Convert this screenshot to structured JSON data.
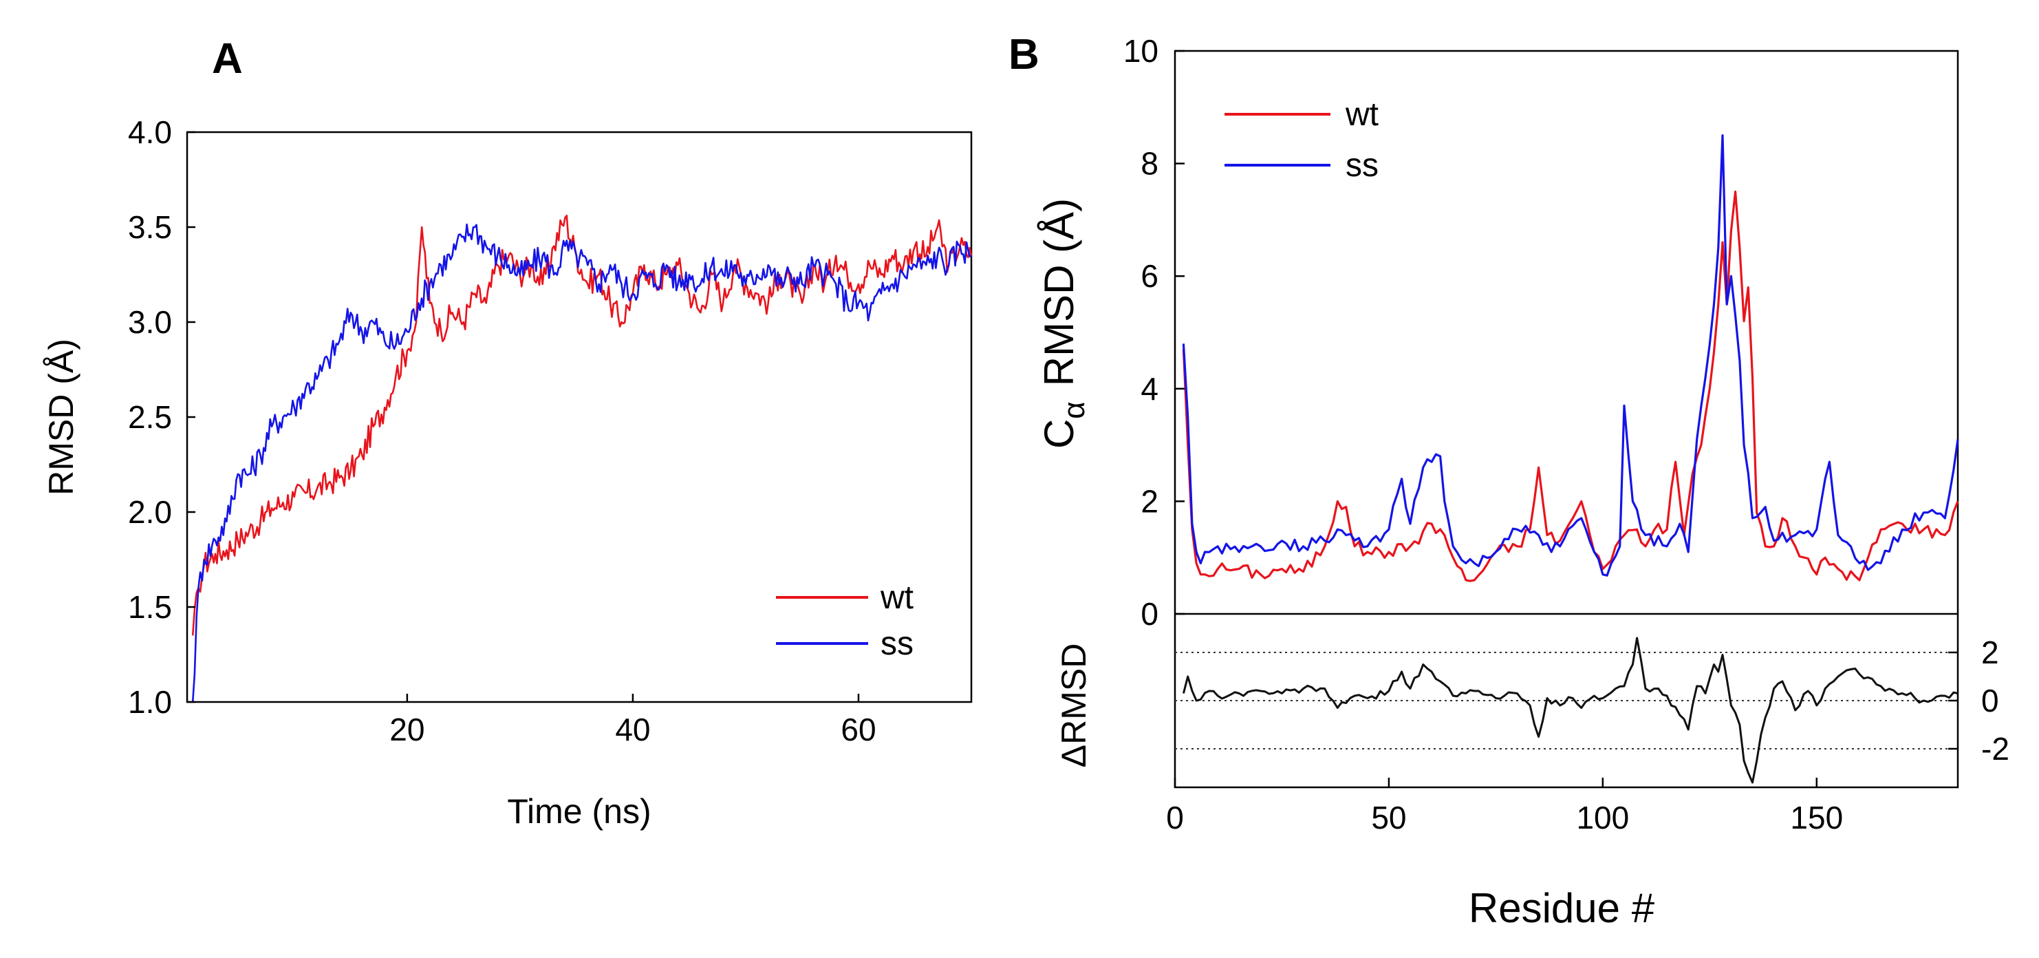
{
  "figure": {
    "panel_a_label": "A",
    "panel_b_label": "B"
  },
  "chart_data": [
    {
      "id": "A",
      "type": "line",
      "title": "",
      "xlabel": "Time (ns)",
      "ylabel": "RMSD (Å)",
      "xlim": [
        0.5,
        70
      ],
      "ylim": [
        1.0,
        4.0
      ],
      "xticks": [
        20,
        40,
        60
      ],
      "yticks": [
        1.0,
        1.5,
        2.0,
        2.5,
        3.0,
        3.5,
        4.0
      ],
      "ytick_labels": [
        "1.0",
        "1.5",
        "2.0",
        "2.5",
        "3.0",
        "3.5",
        "4.0"
      ],
      "grid": false,
      "legend_position": "bottom-right",
      "series": [
        {
          "name": "wt",
          "color": "#e8141c",
          "x": [
            1,
            1.5,
            2,
            3,
            4,
            5,
            6,
            7,
            8,
            9,
            10,
            11,
            12,
            13,
            14,
            15,
            16,
            17,
            18,
            19,
            20,
            20.8,
            21.3,
            22,
            23,
            24,
            25,
            26,
            27,
            28,
            29,
            30,
            31,
            32,
            33,
            34,
            35,
            36,
            37,
            38,
            39,
            40,
            41,
            42,
            43,
            44,
            45,
            46,
            47,
            48,
            49,
            50,
            51,
            52,
            53,
            54,
            55,
            56,
            57,
            58,
            59,
            60,
            61,
            62,
            63,
            64,
            65,
            66,
            67,
            68,
            69,
            70
          ],
          "y": [
            1.35,
            1.6,
            1.72,
            1.78,
            1.8,
            1.85,
            1.9,
            1.95,
            2.02,
            2.05,
            2.08,
            2.1,
            2.12,
            2.15,
            2.18,
            2.22,
            2.3,
            2.45,
            2.55,
            2.72,
            2.85,
            3.0,
            3.5,
            3.1,
            2.95,
            3.05,
            3.0,
            3.15,
            3.1,
            3.3,
            3.35,
            3.25,
            3.3,
            3.2,
            3.4,
            3.55,
            3.35,
            3.2,
            3.25,
            3.1,
            3.0,
            3.15,
            3.3,
            3.2,
            3.25,
            3.3,
            3.15,
            3.05,
            3.25,
            3.1,
            3.3,
            3.2,
            3.15,
            3.1,
            3.25,
            3.2,
            3.1,
            3.3,
            3.2,
            3.35,
            3.25,
            3.2,
            3.3,
            3.25,
            3.35,
            3.3,
            3.4,
            3.35,
            3.5,
            3.3,
            3.4,
            3.35
          ]
        },
        {
          "name": "ss",
          "color": "#1414e8",
          "x": [
            1,
            1.5,
            2,
            3,
            4,
            5,
            6,
            7,
            8,
            9,
            10,
            11,
            12,
            13,
            14,
            15,
            16,
            17,
            18,
            19,
            20,
            21,
            22,
            23,
            24,
            25,
            26,
            27,
            28,
            29,
            30,
            31,
            32,
            33,
            34,
            35,
            36,
            37,
            38,
            39,
            40,
            41,
            42,
            43,
            44,
            45,
            46,
            47,
            48,
            49,
            50,
            51,
            52,
            53,
            54,
            55,
            56,
            57,
            58,
            59,
            60,
            61,
            62,
            63,
            64,
            65,
            66,
            67,
            68,
            69,
            70
          ],
          "y": [
            1.0,
            1.6,
            1.75,
            1.85,
            1.95,
            2.2,
            2.2,
            2.3,
            2.45,
            2.5,
            2.55,
            2.65,
            2.7,
            2.8,
            2.9,
            3.05,
            2.95,
            3.0,
            2.9,
            2.88,
            2.95,
            3.1,
            3.2,
            3.3,
            3.35,
            3.45,
            3.5,
            3.4,
            3.35,
            3.3,
            3.25,
            3.3,
            3.35,
            3.25,
            3.4,
            3.35,
            3.3,
            3.2,
            3.3,
            3.2,
            3.15,
            3.25,
            3.2,
            3.3,
            3.2,
            3.25,
            3.2,
            3.3,
            3.25,
            3.3,
            3.2,
            3.25,
            3.3,
            3.2,
            3.25,
            3.2,
            3.3,
            3.25,
            3.2,
            3.1,
            3.1,
            3.05,
            3.15,
            3.2,
            3.25,
            3.3,
            3.3,
            3.35,
            3.3,
            3.4,
            3.35
          ]
        }
      ]
    },
    {
      "id": "B",
      "type": "line",
      "title": "",
      "xlabel": "Residue #",
      "ylabel_main": "C",
      "ylabel_sub": "α",
      "ylabel_rest": "RMSD (Å)",
      "xlim": [
        0,
        183
      ],
      "ylim": [
        0,
        10
      ],
      "xticks": [
        0,
        50,
        100,
        150
      ],
      "yticks": [
        0,
        2,
        4,
        6,
        8,
        10
      ],
      "grid": false,
      "legend_position": "top-left",
      "series": [
        {
          "name": "wt",
          "color": "#e8141c",
          "x": [
            2,
            3,
            4,
            5,
            6,
            7,
            10,
            15,
            20,
            25,
            30,
            35,
            38,
            40,
            42,
            45,
            50,
            55,
            60,
            63,
            65,
            68,
            70,
            75,
            80,
            83,
            85,
            87,
            90,
            93,
            95,
            98,
            100,
            103,
            105,
            108,
            110,
            113,
            115,
            117,
            119,
            121,
            123,
            125,
            127,
            128,
            129,
            130,
            131,
            132,
            133,
            134,
            135,
            136,
            138,
            140,
            142,
            145,
            150,
            152,
            155,
            160,
            165,
            170,
            175,
            180,
            183
          ],
          "y": [
            4.7,
            3.0,
            1.5,
            0.9,
            0.7,
            0.7,
            0.8,
            0.8,
            0.7,
            0.8,
            0.75,
            1.2,
            2.0,
            1.9,
            1.2,
            1.1,
            1.1,
            1.2,
            1.6,
            1.4,
            1.0,
            0.6,
            0.6,
            1.1,
            1.2,
            1.5,
            2.6,
            1.4,
            1.3,
            1.7,
            2.0,
            1.1,
            0.8,
            1.2,
            1.4,
            1.5,
            1.2,
            1.6,
            1.5,
            2.7,
            1.4,
            2.5,
            3.0,
            4.0,
            5.5,
            6.6,
            5.5,
            6.8,
            7.5,
            6.5,
            5.2,
            5.8,
            4.2,
            1.8,
            1.2,
            1.2,
            1.7,
            1.2,
            0.7,
            1.0,
            0.8,
            0.6,
            1.5,
            1.6,
            1.5,
            1.4,
            2.0
          ]
        },
        {
          "name": "ss",
          "color": "#1414e8",
          "x": [
            2,
            3,
            4,
            5,
            6,
            7,
            10,
            15,
            20,
            25,
            30,
            35,
            38,
            40,
            45,
            50,
            53,
            55,
            58,
            60,
            62,
            63,
            65,
            68,
            70,
            75,
            80,
            85,
            88,
            90,
            95,
            98,
            100,
            102,
            104,
            105,
            107,
            110,
            115,
            118,
            120,
            122,
            124,
            126,
            127,
            128,
            129,
            130,
            131,
            132,
            133,
            134,
            135,
            138,
            140,
            145,
            150,
            152,
            153,
            155,
            160,
            165,
            170,
            175,
            180,
            183
          ],
          "y": [
            4.8,
            3.5,
            1.6,
            1.1,
            0.9,
            1.1,
            1.2,
            1.1,
            1.2,
            1.3,
            1.2,
            1.3,
            1.5,
            1.4,
            1.2,
            1.5,
            2.4,
            1.6,
            2.6,
            2.7,
            2.8,
            2.0,
            1.2,
            0.9,
            0.9,
            1.1,
            1.5,
            1.4,
            1.1,
            1.2,
            1.7,
            1.1,
            0.7,
            0.9,
            1.2,
            3.7,
            2.0,
            1.4,
            1.2,
            1.6,
            1.1,
            3.1,
            4.2,
            5.5,
            6.5,
            8.5,
            5.5,
            6.0,
            5.3,
            4.5,
            3.0,
            2.5,
            1.7,
            1.9,
            1.3,
            1.4,
            1.5,
            2.4,
            2.7,
            1.4,
            0.9,
            0.9,
            1.5,
            1.8,
            1.7,
            3.1
          ]
        }
      ]
    },
    {
      "id": "B-delta",
      "type": "line",
      "title": "",
      "xlabel": "Residue #",
      "ylabel": "ΔRMSD",
      "xlim": [
        0,
        183
      ],
      "ylim": [
        -3.6,
        3.6
      ],
      "yticks": [
        2,
        0,
        -2
      ],
      "ytick_labels": [
        "2",
        "0",
        "-2"
      ],
      "grid": "dotted reference lines at 2, 0, -2",
      "series": [
        {
          "name": "ΔRMSD",
          "color": "#111111",
          "x": [
            2,
            3,
            5,
            8,
            10,
            15,
            20,
            25,
            30,
            35,
            38,
            40,
            42,
            45,
            50,
            53,
            55,
            58,
            60,
            62,
            65,
            68,
            70,
            75,
            80,
            83,
            85,
            87,
            90,
            93,
            95,
            98,
            100,
            103,
            105,
            107,
            108,
            110,
            113,
            115,
            118,
            120,
            122,
            124,
            126,
            127,
            128,
            129,
            130,
            131,
            132,
            133,
            134,
            135,
            136,
            137,
            138,
            140,
            142,
            145,
            148,
            150,
            152,
            155,
            158,
            160,
            165,
            170,
            175,
            180,
            183
          ],
          "y": [
            0.3,
            1.0,
            0.0,
            0.4,
            0.2,
            0.3,
            0.4,
            0.3,
            0.5,
            0.5,
            -0.3,
            -0.1,
            0.2,
            0.1,
            0.4,
            1.2,
            0.5,
            1.5,
            1.2,
            0.8,
            0.2,
            0.3,
            0.4,
            0.1,
            0.3,
            -0.2,
            -1.5,
            0.1,
            -0.2,
            0.1,
            -0.3,
            0.2,
            0.1,
            0.5,
            0.6,
            1.5,
            2.6,
            0.5,
            0.5,
            0.2,
            -0.6,
            -1.2,
            0.6,
            0.3,
            1.5,
            1.2,
            1.9,
            0.9,
            -0.2,
            -0.5,
            -1.0,
            -2.5,
            -3.0,
            -3.4,
            -2.5,
            -1.4,
            -0.7,
            0.5,
            0.8,
            -0.4,
            0.4,
            -0.2,
            0.5,
            1.0,
            1.3,
            1.1,
            0.6,
            0.3,
            0.0,
            0.2,
            0.3
          ]
        }
      ]
    }
  ]
}
